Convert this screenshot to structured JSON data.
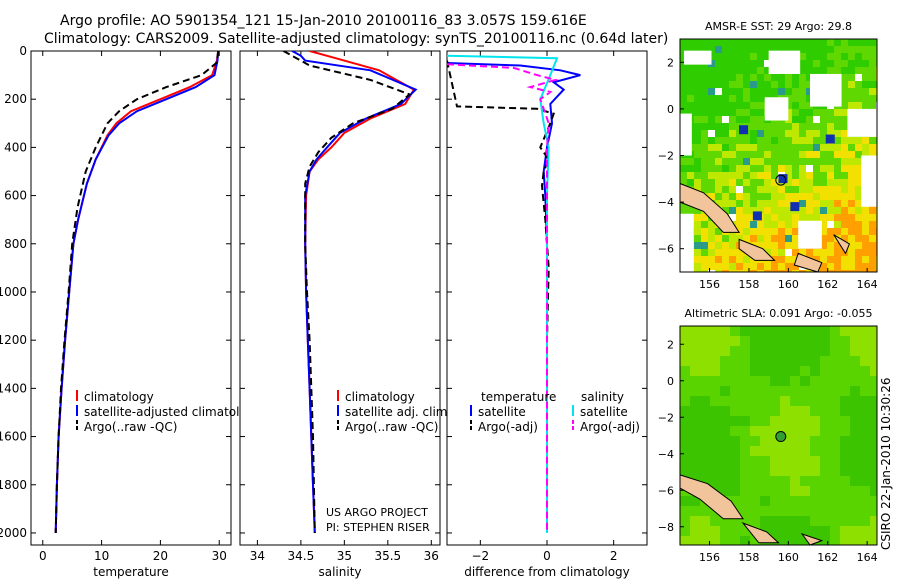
{
  "header": {
    "title_line1": "Argo profile: AO 5901354_121 15-Jan-2010 20100116_83 3.057S 159.616E",
    "title_line2": "Climatology: CARS2009. Satellite-adjusted climatology: synTS_20100116.nc (0.64d later)"
  },
  "stamp": "CSIRO 22-Jan-2010 10:30:26",
  "colors": {
    "climatology": "#ff0000",
    "satellite": "#0000ff",
    "argo": "#000000",
    "salinity_satellite": "#00e5ee",
    "salinity_argo": "#ff00ff"
  },
  "chart_data": [
    {
      "id": "temperature",
      "type": "line",
      "xlabel": "temperature",
      "ylabel": "",
      "xlim": [
        -2,
        32
      ],
      "ylim": [
        2050,
        0
      ],
      "xticks": [
        0,
        10,
        20,
        30
      ],
      "yticks": [
        0,
        200,
        400,
        600,
        800,
        1000,
        1200,
        1400,
        1600,
        1800,
        2000
      ],
      "series": [
        {
          "name": "climatology",
          "style": "solid",
          "color": "#ff0000",
          "x": [
            29.8,
            29.6,
            28.8,
            25,
            20,
            15,
            12.5,
            11,
            9,
            7.5,
            6,
            5.2,
            4.5,
            3.8,
            3.2,
            2.7,
            2.4,
            2.2
          ],
          "y": [
            0,
            40,
            100,
            150,
            200,
            250,
            300,
            350,
            450,
            550,
            700,
            800,
            1000,
            1200,
            1400,
            1600,
            1800,
            2000
          ]
        },
        {
          "name": "satellite-adjusted climatology",
          "style": "solid",
          "color": "#0000ff",
          "x": [
            29.8,
            29.7,
            29.2,
            26,
            21,
            16,
            13,
            11.2,
            9,
            7.5,
            6,
            5.2,
            4.5,
            3.8,
            3.2,
            2.7,
            2.4,
            2.2
          ],
          "y": [
            0,
            40,
            100,
            150,
            200,
            250,
            300,
            350,
            450,
            550,
            700,
            800,
            1000,
            1200,
            1400,
            1600,
            1800,
            2000
          ]
        },
        {
          "name": "Argo(..raw -QC)",
          "style": "dash",
          "color": "#000000",
          "x": [
            29.9,
            29.5,
            27,
            21,
            16,
            13,
            11,
            9,
            7.3,
            5.9,
            5.0,
            4.4,
            3.7,
            3.1,
            2.7,
            2.4,
            2.2
          ],
          "y": [
            0,
            50,
            100,
            150,
            200,
            250,
            300,
            400,
            500,
            650,
            800,
            1000,
            1200,
            1400,
            1600,
            1800,
            2000
          ]
        }
      ],
      "legend": {
        "position": "lower-right",
        "entries": [
          "climatology",
          "satellite-adjusted climatology",
          "Argo(..raw -QC)"
        ]
      }
    },
    {
      "id": "salinity",
      "type": "line",
      "xlabel": "salinity",
      "xlim": [
        33.8,
        36.1
      ],
      "ylim": [
        2050,
        0
      ],
      "xticks": [
        34,
        34.5,
        35,
        35.5,
        36
      ],
      "yticks": [
        0,
        200,
        400,
        600,
        800,
        1000,
        1200,
        1400,
        1600,
        1800,
        2000
      ],
      "series": [
        {
          "name": "climatology",
          "style": "solid",
          "color": "#ff0000",
          "x": [
            34.6,
            34.9,
            35.4,
            35.8,
            35.7,
            35.3,
            35.0,
            34.85,
            34.7,
            34.6,
            34.56,
            34.55,
            34.56,
            34.58,
            34.6,
            34.62,
            34.64,
            34.66
          ],
          "y": [
            0,
            30,
            80,
            160,
            220,
            280,
            340,
            400,
            450,
            500,
            600,
            800,
            1000,
            1200,
            1400,
            1600,
            1800,
            2000
          ]
        },
        {
          "name": "satellite adj. clim.",
          "style": "solid",
          "color": "#0000ff",
          "x": [
            34.4,
            34.5,
            34.55,
            35.3,
            35.82,
            35.65,
            35.25,
            34.95,
            34.8,
            34.68,
            34.6,
            34.55,
            34.55,
            34.56,
            34.58,
            34.6,
            34.62,
            34.64,
            34.66
          ],
          "y": [
            0,
            20,
            40,
            80,
            160,
            220,
            280,
            340,
            400,
            450,
            500,
            600,
            800,
            1000,
            1200,
            1400,
            1600,
            1800,
            2000
          ]
        },
        {
          "name": "Argo(..raw -QC)",
          "style": "dash",
          "color": "#000000",
          "x": [
            34.3,
            34.6,
            35.3,
            35.75,
            35.55,
            35.1,
            34.85,
            34.7,
            34.6,
            34.55,
            34.55,
            34.57,
            34.6,
            34.62,
            34.64,
            34.66
          ],
          "y": [
            0,
            60,
            120,
            180,
            240,
            300,
            360,
            420,
            480,
            550,
            800,
            1000,
            1200,
            1400,
            1600,
            2000
          ]
        }
      ],
      "legend": {
        "position": "lower-right",
        "entries": [
          "climatology",
          "satellite adj. clim.",
          "Argo(..raw -QC)"
        ]
      },
      "annotations": [
        "US ARGO PROJECT",
        "PI: STEPHEN RISER"
      ]
    },
    {
      "id": "difference",
      "type": "line",
      "xlabel": "difference from climatology",
      "xlim": [
        -3,
        3
      ],
      "ylim": [
        2050,
        0
      ],
      "xticks": [
        -2,
        0,
        2
      ],
      "yticks": [
        0,
        200,
        400,
        600,
        800,
        1000,
        1200,
        1400,
        1600,
        1800,
        2000
      ],
      "series": [
        {
          "name": "temperature satellite",
          "style": "solid",
          "color": "#0000ff",
          "x": [
            -3,
            -0.8,
            0.4,
            1.0,
            0.2,
            0.5,
            0.1,
            0.15,
            0.0,
            -0.1,
            -0.05,
            0,
            0,
            0,
            0
          ],
          "y": [
            50,
            60,
            80,
            100,
            130,
            160,
            220,
            300,
            400,
            500,
            600,
            800,
            1200,
            1600,
            2000
          ]
        },
        {
          "name": "temperature Argo(-adj)",
          "style": "dash",
          "color": "#000000",
          "x": [
            -3,
            -2.7,
            -0.3,
            0.2,
            0.1,
            -0.2,
            0.05,
            -0.1,
            -0.15,
            -0.05,
            0.05,
            0,
            0,
            0
          ],
          "y": [
            40,
            230,
            240,
            260,
            300,
            400,
            450,
            500,
            560,
            700,
            900,
            1200,
            1600,
            2000
          ]
        },
        {
          "name": "salinity satellite",
          "style": "solid",
          "color": "#00e5ee",
          "x": [
            -3,
            0.3,
            0.1,
            -0.2,
            -0.1,
            0.05,
            0,
            0,
            0
          ],
          "y": [
            20,
            30,
            100,
            200,
            300,
            400,
            600,
            1200,
            2000
          ]
        },
        {
          "name": "salinity Argo(-adj)",
          "style": "dash",
          "color": "#ff00ff",
          "x": [
            -3,
            -1.0,
            -0.3,
            0.25,
            -0.5,
            0.1,
            -0.2,
            0.05,
            0,
            0,
            0
          ],
          "y": [
            55,
            70,
            100,
            120,
            150,
            170,
            200,
            300,
            400,
            900,
            2000
          ]
        }
      ],
      "legend": {
        "position": "lower-center",
        "headers": [
          "temperature",
          "salinity"
        ],
        "entries": [
          "satellite",
          "Argo(-adj)",
          "satellite",
          "Argo(-adj)"
        ]
      }
    },
    {
      "id": "sst-map",
      "type": "heatmap",
      "title": "AMSR-E SST: 29 Argo: 29.8",
      "xlim": [
        154.5,
        164.5
      ],
      "ylim": [
        -7,
        3
      ],
      "xticks": [
        156,
        158,
        160,
        162,
        164
      ],
      "yticks": [
        -6,
        -4,
        -2,
        0,
        2
      ],
      "marker": {
        "lon": 159.616,
        "lat": -3.057
      }
    },
    {
      "id": "sla-map",
      "type": "heatmap",
      "title": "Altimetric SLA: 0.091 Argo: -0.055",
      "xlim": [
        154.5,
        164.5
      ],
      "ylim": [
        -9,
        3
      ],
      "xticks": [
        156,
        158,
        160,
        162,
        164
      ],
      "yticks": [
        -8,
        -6,
        -4,
        -2,
        0,
        2
      ],
      "marker": {
        "lon": 159.616,
        "lat": -3.057
      }
    }
  ]
}
